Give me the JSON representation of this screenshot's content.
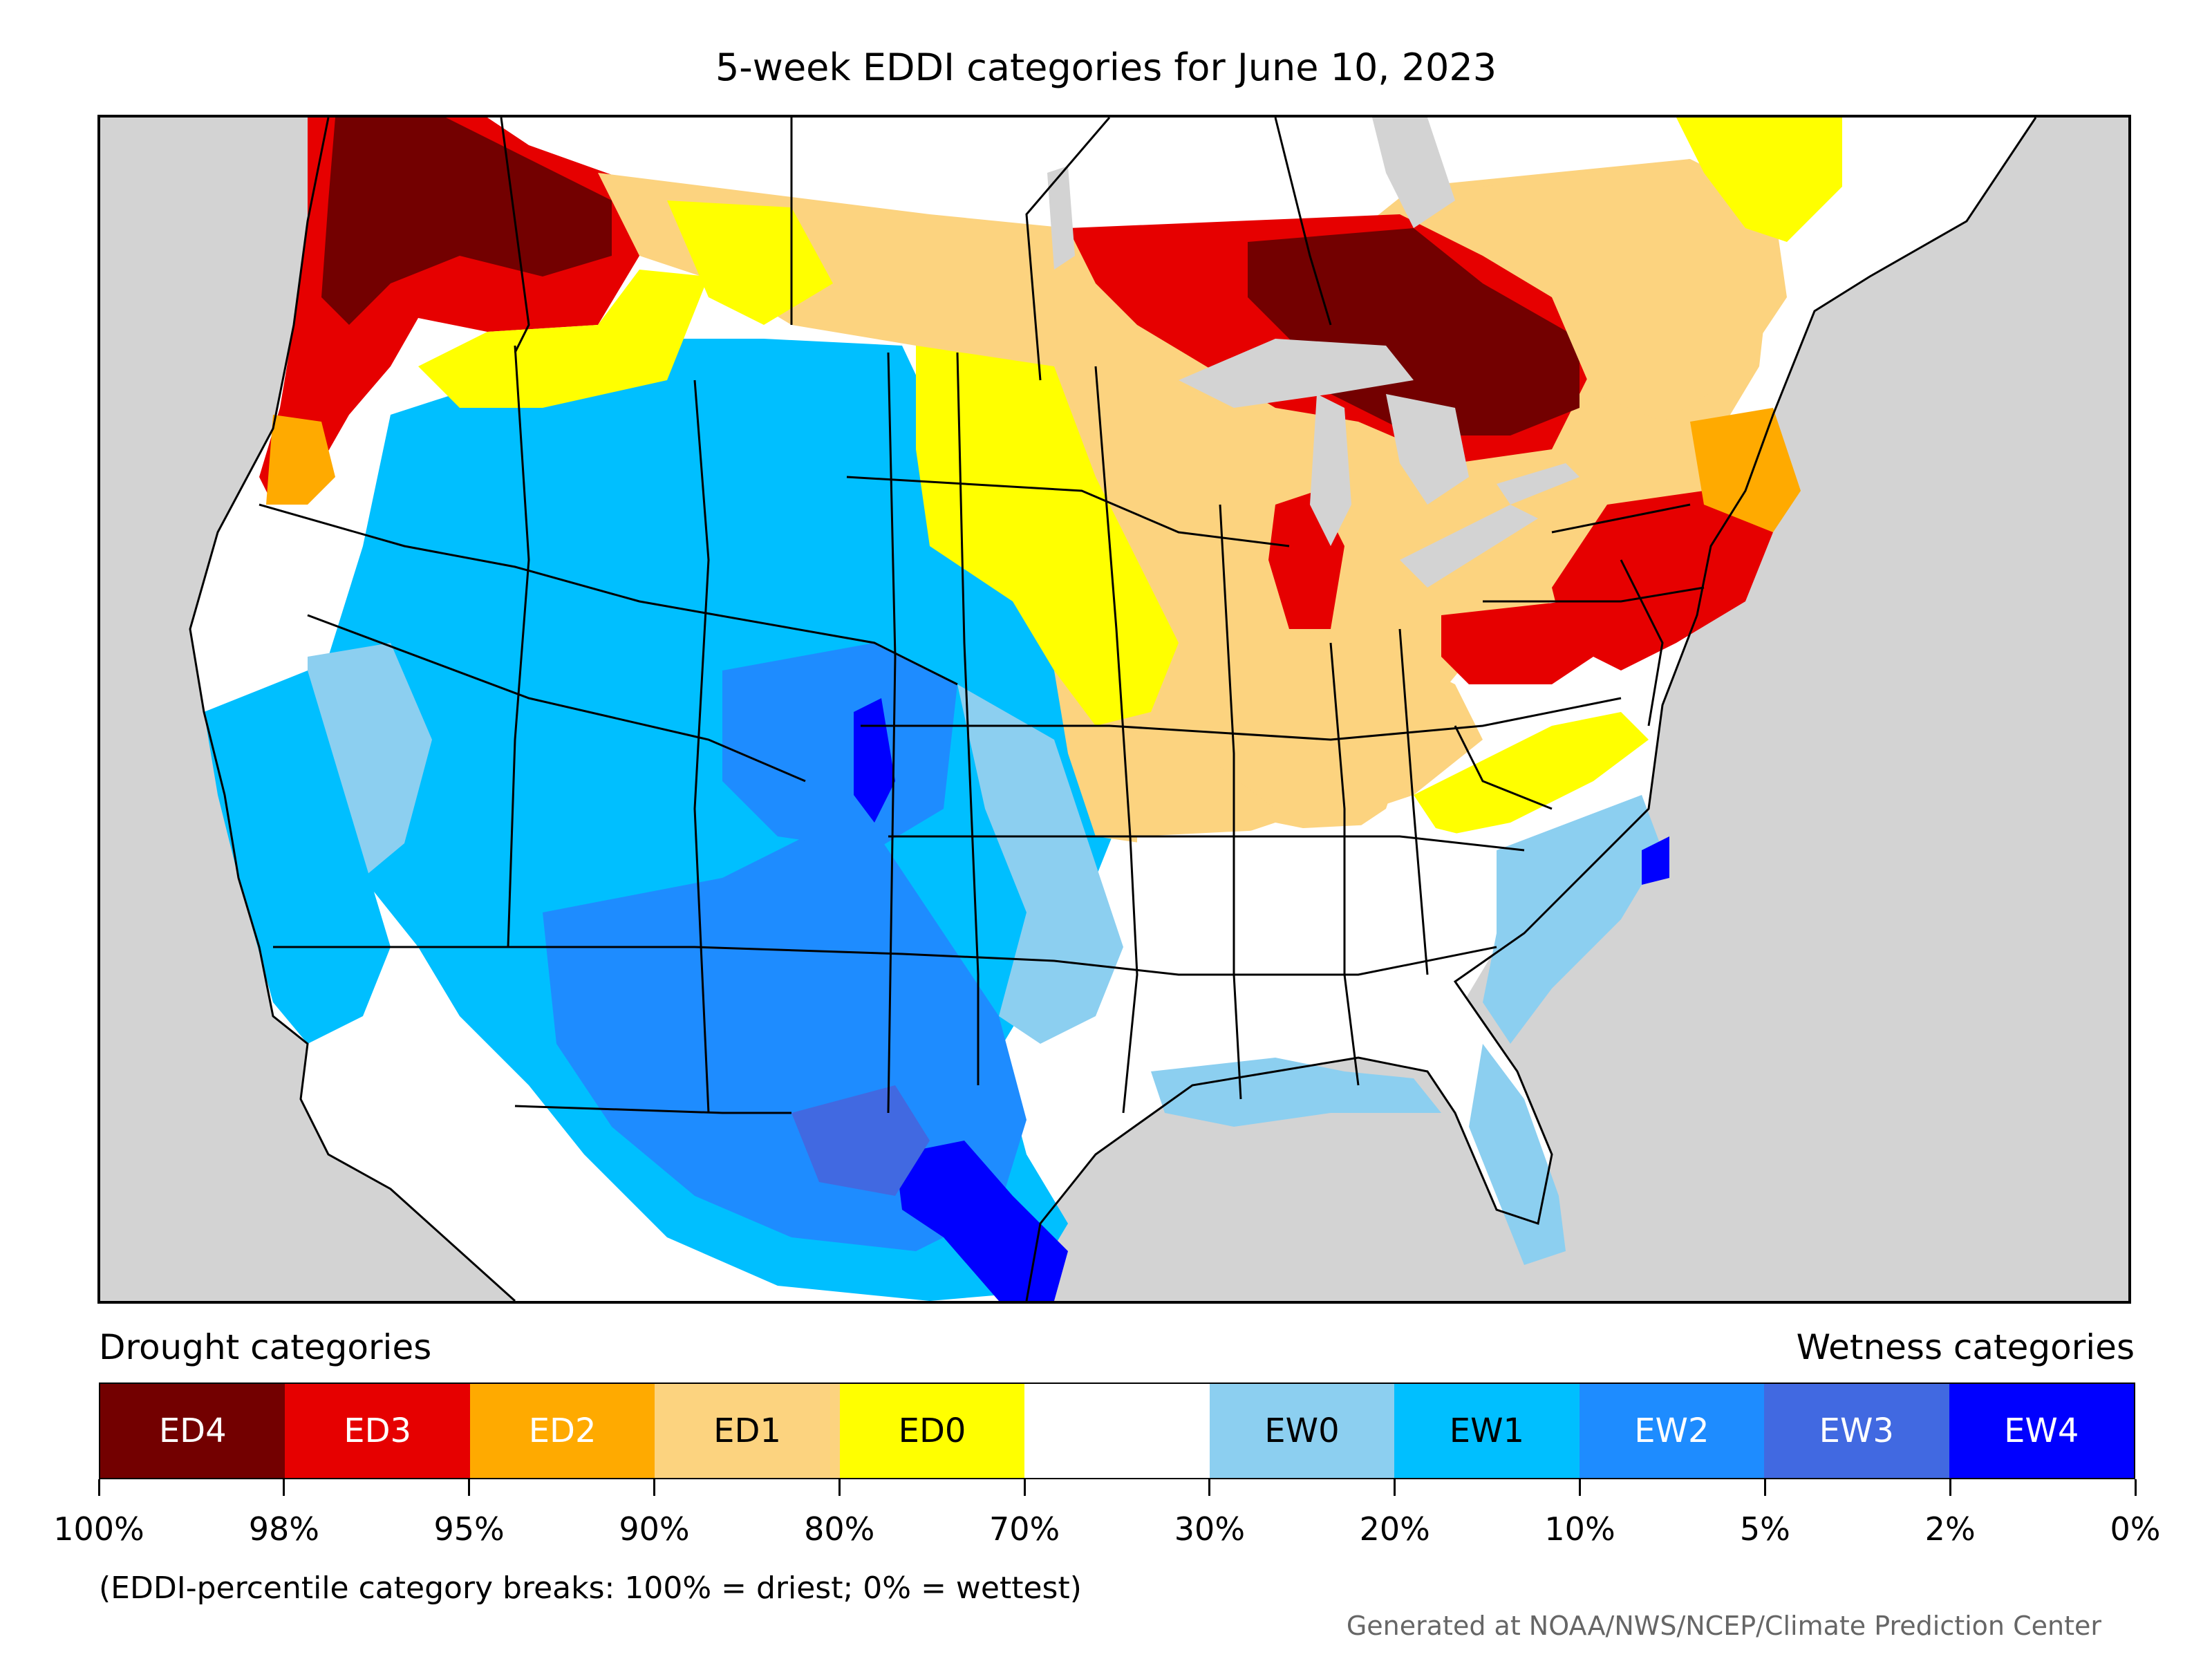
{
  "title": "5-week EDDI categories for June 10, 2023",
  "legend": {
    "drought_header": "Drought categories",
    "wetness_header": "Wetness categories",
    "categories": [
      {
        "label": "ED4",
        "color": "#730000",
        "text_color": "#ffffff"
      },
      {
        "label": "ED3",
        "color": "#e60000",
        "text_color": "#ffffff"
      },
      {
        "label": "ED2",
        "color": "#ffaa00",
        "text_color": "#ffffff"
      },
      {
        "label": "ED1",
        "color": "#fcd37f",
        "text_color": "#000000"
      },
      {
        "label": "ED0",
        "color": "#ffff00",
        "text_color": "#000000"
      },
      {
        "label": "",
        "color": "#ffffff",
        "text_color": "#000000"
      },
      {
        "label": "EW0",
        "color": "#8ccff0",
        "text_color": "#000000"
      },
      {
        "label": "EW1",
        "color": "#00bfff",
        "text_color": "#000000"
      },
      {
        "label": "EW2",
        "color": "#1e8cff",
        "text_color": "#ffffff"
      },
      {
        "label": "EW3",
        "color": "#4169e1",
        "text_color": "#ffffff"
      },
      {
        "label": "EW4",
        "color": "#0000ff",
        "text_color": "#ffffff"
      }
    ],
    "breaks": [
      "100%",
      "98%",
      "95%",
      "90%",
      "80%",
      "70%",
      "30%",
      "20%",
      "10%",
      "5%",
      "2%",
      "0%"
    ],
    "note": "(EDDI-percentile category breaks: 100% = driest; 0% = wettest)"
  },
  "credit": "Generated at NOAA/NWS/NCEP/Climate Prediction Center",
  "map": {
    "background_color": "#d3d3d3",
    "land_default_color": "#ffffff",
    "water_color": "#d3d3d3",
    "region_categories": {
      "pacific-northwest-coast": "ED4",
      "northern-cascades-bc": "ED4",
      "oregon-coast": "ED3",
      "northern-plains-canada": "ED1",
      "great-rockies-basin": "EW1",
      "southern-rockies-core": "EW2",
      "colorado-front": "EW4",
      "california-interior": "EW1",
      "desert-southwest": "EW2",
      "south-texas-coast": "EW4",
      "midwest": "ED1",
      "corn-belt-fringe": "ED0",
      "ontario-north": "ED4",
      "ontario-south": "ED3",
      "quebec": "ED1",
      "northeast-corridor": "ED3",
      "ohio-valley": "ED1",
      "appalachian-fringe": "ED0",
      "carolina-coast": "EW0",
      "carolina-outer-banks": "EW3",
      "gulf-coast": "EW0",
      "florida": "EW0",
      "southeast-interior": "none"
    }
  }
}
